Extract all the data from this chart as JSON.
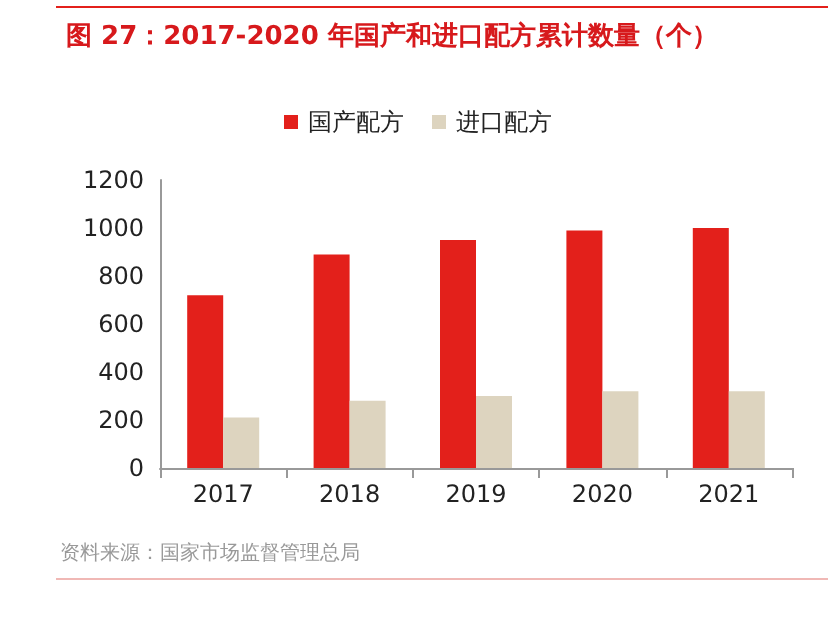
{
  "chart_data": {
    "type": "bar",
    "title": "图 27：2017-2020 年国产和进口配方累计数量（个）",
    "categories": [
      "2017",
      "2018",
      "2019",
      "2020",
      "2021"
    ],
    "series": [
      {
        "name": "国产配方",
        "color": "#e3201b",
        "values": [
          720,
          890,
          950,
          990,
          1000
        ]
      },
      {
        "name": "进口配方",
        "color": "#ddd4bf",
        "values": [
          210,
          280,
          300,
          320,
          320
        ]
      }
    ],
    "ylim": [
      0,
      1200
    ],
    "yticks": [
      0,
      200,
      400,
      600,
      800,
      1000,
      1200
    ],
    "grid": false,
    "legend": "top",
    "annotations": [
      "资料来源：国家市场监督管理总局"
    ]
  }
}
